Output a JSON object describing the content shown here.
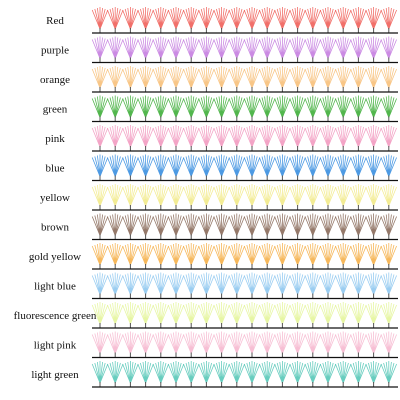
{
  "rows": [
    {
      "label": "Red",
      "color": "#f0605a"
    },
    {
      "label": "purple",
      "color": "#c57ee0"
    },
    {
      "label": "orange",
      "color": "#f7c07a"
    },
    {
      "label": "green",
      "color": "#3fae3a"
    },
    {
      "label": "pink",
      "color": "#f29ac0"
    },
    {
      "label": "blue",
      "color": "#3a8fe0"
    },
    {
      "label": "yellow",
      "color": "#f2ea8a"
    },
    {
      "label": "brown",
      "color": "#8a6a5a"
    },
    {
      "label": "gold yellow",
      "color": "#f5b04a"
    },
    {
      "label": "light blue",
      "color": "#8fc8f0"
    },
    {
      "label": "fluorescence green",
      "color": "#e4f59a"
    },
    {
      "label": "light pink",
      "color": "#f6b8cf"
    },
    {
      "label": "light green",
      "color": "#58c8b8"
    }
  ]
}
